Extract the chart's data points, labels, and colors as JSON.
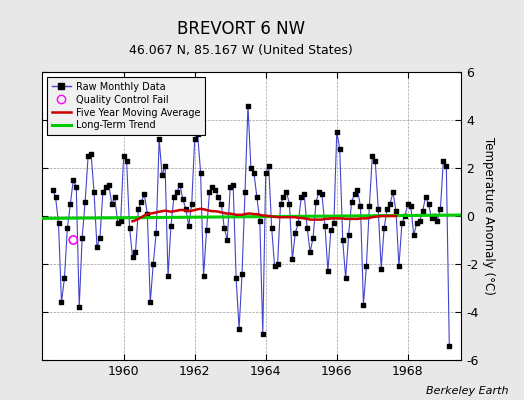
{
  "title": "BREVORT 6 NW",
  "subtitle": "46.067 N, 85.167 W (United States)",
  "ylabel": "Temperature Anomaly (°C)",
  "credit": "Berkeley Earth",
  "background_color": "#e8e8e8",
  "plot_bg_color": "#ffffff",
  "raw_color": "#4444cc",
  "raw_dot_color": "#000000",
  "ma_color": "#cc0000",
  "trend_color": "#00cc00",
  "qc_color": "#ff00ff",
  "ylim": [
    -6,
    6
  ],
  "xlim_start": 1957.7,
  "xlim_end": 1969.5,
  "xticks": [
    1960,
    1962,
    1964,
    1966,
    1968
  ],
  "monthly_data": [
    [
      1958.0,
      1.1
    ],
    [
      1958.083,
      0.8
    ],
    [
      1958.167,
      -0.3
    ],
    [
      1958.25,
      -3.6
    ],
    [
      1958.333,
      -2.6
    ],
    [
      1958.417,
      -0.5
    ],
    [
      1958.5,
      0.5
    ],
    [
      1958.583,
      1.5
    ],
    [
      1958.667,
      1.2
    ],
    [
      1958.75,
      -3.8
    ],
    [
      1958.833,
      -0.9
    ],
    [
      1958.917,
      0.6
    ],
    [
      1959.0,
      2.5
    ],
    [
      1959.083,
      2.6
    ],
    [
      1959.167,
      1.0
    ],
    [
      1959.25,
      -1.3
    ],
    [
      1959.333,
      -0.9
    ],
    [
      1959.417,
      1.0
    ],
    [
      1959.5,
      1.2
    ],
    [
      1959.583,
      1.3
    ],
    [
      1959.667,
      0.5
    ],
    [
      1959.75,
      0.8
    ],
    [
      1959.833,
      -0.3
    ],
    [
      1959.917,
      -0.2
    ],
    [
      1960.0,
      2.5
    ],
    [
      1960.083,
      2.3
    ],
    [
      1960.167,
      -0.5
    ],
    [
      1960.25,
      -1.7
    ],
    [
      1960.333,
      -1.5
    ],
    [
      1960.417,
      0.3
    ],
    [
      1960.5,
      0.6
    ],
    [
      1960.583,
      0.9
    ],
    [
      1960.667,
      0.1
    ],
    [
      1960.75,
      -3.6
    ],
    [
      1960.833,
      -2.0
    ],
    [
      1960.917,
      -0.7
    ],
    [
      1961.0,
      3.2
    ],
    [
      1961.083,
      1.7
    ],
    [
      1961.167,
      2.1
    ],
    [
      1961.25,
      -2.5
    ],
    [
      1961.333,
      -0.4
    ],
    [
      1961.417,
      0.8
    ],
    [
      1961.5,
      1.0
    ],
    [
      1961.583,
      1.3
    ],
    [
      1961.667,
      0.7
    ],
    [
      1961.75,
      0.3
    ],
    [
      1961.833,
      -0.4
    ],
    [
      1961.917,
      0.5
    ],
    [
      1962.0,
      3.2
    ],
    [
      1962.083,
      3.4
    ],
    [
      1962.167,
      1.8
    ],
    [
      1962.25,
      -2.5
    ],
    [
      1962.333,
      -0.6
    ],
    [
      1962.417,
      1.0
    ],
    [
      1962.5,
      1.2
    ],
    [
      1962.583,
      1.1
    ],
    [
      1962.667,
      0.8
    ],
    [
      1962.75,
      0.5
    ],
    [
      1962.833,
      -0.5
    ],
    [
      1962.917,
      -1.0
    ],
    [
      1963.0,
      1.2
    ],
    [
      1963.083,
      1.3
    ],
    [
      1963.167,
      -2.6
    ],
    [
      1963.25,
      -4.7
    ],
    [
      1963.333,
      -2.4
    ],
    [
      1963.417,
      1.0
    ],
    [
      1963.5,
      4.6
    ],
    [
      1963.583,
      2.0
    ],
    [
      1963.667,
      1.8
    ],
    [
      1963.75,
      0.8
    ],
    [
      1963.833,
      -0.2
    ],
    [
      1963.917,
      -4.9
    ],
    [
      1964.0,
      1.8
    ],
    [
      1964.083,
      2.1
    ],
    [
      1964.167,
      -0.5
    ],
    [
      1964.25,
      -2.1
    ],
    [
      1964.333,
      -2.0
    ],
    [
      1964.417,
      0.5
    ],
    [
      1964.5,
      0.8
    ],
    [
      1964.583,
      1.0
    ],
    [
      1964.667,
      0.5
    ],
    [
      1964.75,
      -1.8
    ],
    [
      1964.833,
      -0.7
    ],
    [
      1964.917,
      -0.3
    ],
    [
      1965.0,
      0.8
    ],
    [
      1965.083,
      0.9
    ],
    [
      1965.167,
      -0.5
    ],
    [
      1965.25,
      -1.5
    ],
    [
      1965.333,
      -0.9
    ],
    [
      1965.417,
      0.6
    ],
    [
      1965.5,
      1.0
    ],
    [
      1965.583,
      0.9
    ],
    [
      1965.667,
      -0.4
    ],
    [
      1965.75,
      -2.3
    ],
    [
      1965.833,
      -0.6
    ],
    [
      1965.917,
      -0.3
    ],
    [
      1966.0,
      3.5
    ],
    [
      1966.083,
      2.8
    ],
    [
      1966.167,
      -1.0
    ],
    [
      1966.25,
      -2.6
    ],
    [
      1966.333,
      -0.8
    ],
    [
      1966.417,
      0.6
    ],
    [
      1966.5,
      0.9
    ],
    [
      1966.583,
      1.1
    ],
    [
      1966.667,
      0.4
    ],
    [
      1966.75,
      -3.7
    ],
    [
      1966.833,
      -2.1
    ],
    [
      1966.917,
      0.4
    ],
    [
      1967.0,
      2.5
    ],
    [
      1967.083,
      2.3
    ],
    [
      1967.167,
      0.3
    ],
    [
      1967.25,
      -2.2
    ],
    [
      1967.333,
      -0.5
    ],
    [
      1967.417,
      0.3
    ],
    [
      1967.5,
      0.5
    ],
    [
      1967.583,
      1.0
    ],
    [
      1967.667,
      0.2
    ],
    [
      1967.75,
      -2.1
    ],
    [
      1967.833,
      -0.3
    ],
    [
      1967.917,
      0.0
    ],
    [
      1968.0,
      0.5
    ],
    [
      1968.083,
      0.4
    ],
    [
      1968.167,
      -0.8
    ],
    [
      1968.25,
      -0.3
    ],
    [
      1968.333,
      -0.2
    ],
    [
      1968.417,
      0.2
    ],
    [
      1968.5,
      0.8
    ],
    [
      1968.583,
      0.5
    ],
    [
      1968.667,
      -0.1
    ],
    [
      1968.75,
      0.0
    ],
    [
      1968.833,
      -0.2
    ],
    [
      1968.917,
      0.3
    ],
    [
      1969.0,
      2.3
    ],
    [
      1969.083,
      2.1
    ],
    [
      1969.167,
      -5.4
    ]
  ],
  "qc_points": [
    [
      1958.583,
      -1.0
    ]
  ],
  "moving_avg": [
    [
      1960.25,
      -0.22
    ],
    [
      1960.333,
      -0.18
    ],
    [
      1960.417,
      -0.12
    ],
    [
      1960.5,
      -0.05
    ],
    [
      1960.583,
      0.02
    ],
    [
      1960.667,
      0.08
    ],
    [
      1960.75,
      0.1
    ],
    [
      1960.833,
      0.12
    ],
    [
      1960.917,
      0.15
    ],
    [
      1961.0,
      0.18
    ],
    [
      1961.083,
      0.2
    ],
    [
      1961.167,
      0.22
    ],
    [
      1961.25,
      0.2
    ],
    [
      1961.333,
      0.18
    ],
    [
      1961.417,
      0.2
    ],
    [
      1961.5,
      0.22
    ],
    [
      1961.583,
      0.25
    ],
    [
      1961.667,
      0.25
    ],
    [
      1961.75,
      0.22
    ],
    [
      1961.833,
      0.2
    ],
    [
      1961.917,
      0.22
    ],
    [
      1962.0,
      0.25
    ],
    [
      1962.083,
      0.28
    ],
    [
      1962.167,
      0.3
    ],
    [
      1962.25,
      0.28
    ],
    [
      1962.333,
      0.25
    ],
    [
      1962.417,
      0.22
    ],
    [
      1962.5,
      0.2
    ],
    [
      1962.583,
      0.2
    ],
    [
      1962.667,
      0.18
    ],
    [
      1962.75,
      0.15
    ],
    [
      1962.833,
      0.12
    ],
    [
      1962.917,
      0.1
    ],
    [
      1963.0,
      0.1
    ],
    [
      1963.083,
      0.08
    ],
    [
      1963.167,
      0.05
    ],
    [
      1963.25,
      0.05
    ],
    [
      1963.333,
      0.05
    ],
    [
      1963.417,
      0.08
    ],
    [
      1963.5,
      0.1
    ],
    [
      1963.583,
      0.1
    ],
    [
      1963.667,
      0.08
    ],
    [
      1963.75,
      0.08
    ],
    [
      1963.833,
      0.05
    ],
    [
      1963.917,
      0.02
    ],
    [
      1964.0,
      0.02
    ],
    [
      1964.083,
      0.0
    ],
    [
      1964.167,
      -0.02
    ],
    [
      1964.25,
      -0.03
    ],
    [
      1964.333,
      -0.05
    ],
    [
      1964.417,
      -0.05
    ],
    [
      1964.5,
      -0.05
    ],
    [
      1964.583,
      -0.05
    ],
    [
      1964.667,
      -0.05
    ],
    [
      1964.75,
      -0.05
    ],
    [
      1964.833,
      -0.05
    ],
    [
      1964.917,
      -0.08
    ],
    [
      1965.0,
      -0.08
    ],
    [
      1965.083,
      -0.1
    ],
    [
      1965.167,
      -0.12
    ],
    [
      1965.25,
      -0.15
    ],
    [
      1965.333,
      -0.15
    ],
    [
      1965.417,
      -0.15
    ],
    [
      1965.5,
      -0.15
    ],
    [
      1965.583,
      -0.15
    ],
    [
      1965.667,
      -0.12
    ],
    [
      1965.75,
      -0.12
    ],
    [
      1965.833,
      -0.1
    ],
    [
      1965.917,
      -0.1
    ],
    [
      1966.0,
      -0.1
    ],
    [
      1966.083,
      -0.1
    ],
    [
      1966.167,
      -0.1
    ],
    [
      1966.25,
      -0.12
    ],
    [
      1966.333,
      -0.12
    ],
    [
      1966.417,
      -0.12
    ],
    [
      1966.5,
      -0.12
    ],
    [
      1966.583,
      -0.12
    ],
    [
      1966.667,
      -0.1
    ],
    [
      1966.75,
      -0.1
    ],
    [
      1966.833,
      -0.1
    ],
    [
      1966.917,
      -0.08
    ],
    [
      1967.0,
      -0.05
    ],
    [
      1967.083,
      -0.03
    ],
    [
      1967.167,
      -0.02
    ],
    [
      1967.25,
      0.0
    ],
    [
      1967.333,
      0.0
    ],
    [
      1967.417,
      0.0
    ],
    [
      1967.5,
      0.0
    ],
    [
      1967.583,
      0.0
    ],
    [
      1967.667,
      0.0
    ]
  ],
  "trend_x": [
    1957.7,
    1969.5
  ],
  "trend_y": [
    -0.1,
    0.04
  ]
}
